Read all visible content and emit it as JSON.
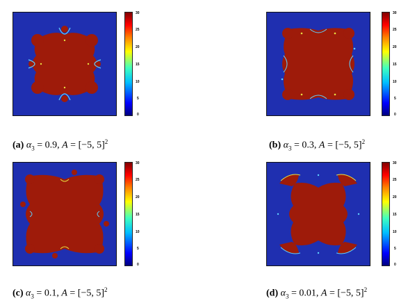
{
  "panels": [
    {
      "label": "(a)",
      "alpha_value": "0.9",
      "domain": "[−5, 5]",
      "domain_exp": "2"
    },
    {
      "label": "(b)",
      "alpha_value": "0.3",
      "domain": "[−5, 5]",
      "domain_exp": "2"
    },
    {
      "label": "(c)",
      "alpha_value": "0.1",
      "domain": "[−5, 5]",
      "domain_exp": "2"
    },
    {
      "label": "(d)",
      "alpha_value": "0.01",
      "domain": "[−5, 5]",
      "domain_exp": "2"
    }
  ],
  "caption_parts": {
    "alpha_symbol": "α",
    "alpha_sub": "3",
    "eq": "=",
    "set_name": "A"
  },
  "colorbar_ticks": [
    "30",
    "25",
    "20",
    "15",
    "10",
    "5",
    "0"
  ],
  "colors": {
    "background": "#1f2fb0",
    "basin": "#9e1b0a",
    "accent_cyan": "#5fd0ff",
    "accent_yellow": "#e8e040"
  }
}
